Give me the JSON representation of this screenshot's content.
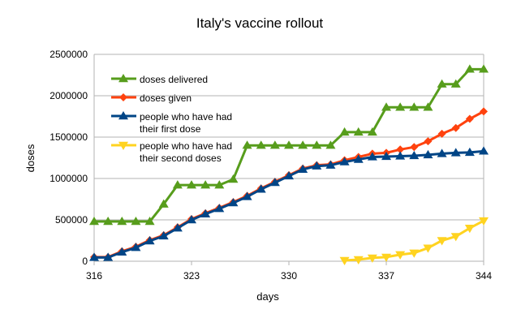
{
  "chart_data": {
    "type": "line",
    "title": "Italy's vaccine rollout",
    "xlabel": "days",
    "ylabel": "doses",
    "xlim": [
      316,
      344
    ],
    "ylim": [
      0,
      2500000
    ],
    "xticks": [
      316,
      323,
      330,
      337,
      344
    ],
    "yticks": [
      0,
      500000,
      1000000,
      1500000,
      2000000,
      2500000
    ],
    "grid": "horizontal",
    "legend_position": "top-left inside",
    "series": [
      {
        "name": "doses delivered",
        "color": "#579d1c",
        "marker": "triangle-up",
        "x": [
          316,
          317,
          318,
          319,
          320,
          321,
          322,
          323,
          324,
          325,
          326,
          327,
          328,
          329,
          330,
          331,
          332,
          333,
          334,
          335,
          336,
          337,
          338,
          339,
          340,
          341,
          342,
          343,
          344
        ],
        "values": [
          480000,
          480000,
          480000,
          480000,
          480000,
          690000,
          920000,
          920000,
          920000,
          920000,
          990000,
          1400000,
          1400000,
          1400000,
          1400000,
          1400000,
          1400000,
          1400000,
          1560000,
          1560000,
          1560000,
          1860000,
          1860000,
          1860000,
          1860000,
          2140000,
          2140000,
          2320000,
          2320000
        ]
      },
      {
        "name": "doses given",
        "color": "#ff420e",
        "marker": "diamond",
        "x": [
          316,
          317,
          318,
          319,
          320,
          321,
          322,
          323,
          324,
          325,
          326,
          327,
          328,
          329,
          330,
          331,
          332,
          333,
          334,
          335,
          336,
          337,
          338,
          339,
          340,
          341,
          342,
          343,
          344
        ],
        "values": [
          50000,
          50000,
          120000,
          175000,
          255000,
          315000,
          410000,
          510000,
          580000,
          645000,
          715000,
          790000,
          880000,
          960000,
          1040000,
          1120000,
          1160000,
          1170000,
          1220000,
          1260000,
          1300000,
          1310000,
          1350000,
          1380000,
          1450000,
          1540000,
          1610000,
          1720000,
          1810000
        ]
      },
      {
        "name": "people who have had their first dose",
        "color": "#004586",
        "marker": "triangle-up",
        "x": [
          316,
          317,
          318,
          319,
          320,
          321,
          322,
          323,
          324,
          325,
          326,
          327,
          328,
          329,
          330,
          331,
          332,
          333,
          334,
          335,
          336,
          337,
          338,
          339,
          340,
          341,
          342,
          343,
          344
        ],
        "values": [
          45000,
          45000,
          110000,
          165000,
          245000,
          305000,
          400000,
          500000,
          570000,
          635000,
          705000,
          780000,
          870000,
          950000,
          1030000,
          1110000,
          1150000,
          1160000,
          1200000,
          1230000,
          1260000,
          1265000,
          1270000,
          1275000,
          1285000,
          1300000,
          1310000,
          1315000,
          1330000
        ]
      },
      {
        "name": "people who have had their second doses",
        "color": "#ffd320",
        "marker": "triangle-down",
        "x": [
          334,
          335,
          336,
          337,
          338,
          339,
          340,
          341,
          342,
          343,
          344
        ],
        "values": [
          10000,
          20000,
          40000,
          50000,
          80000,
          100000,
          160000,
          250000,
          300000,
          400000,
          490000
        ]
      }
    ]
  }
}
